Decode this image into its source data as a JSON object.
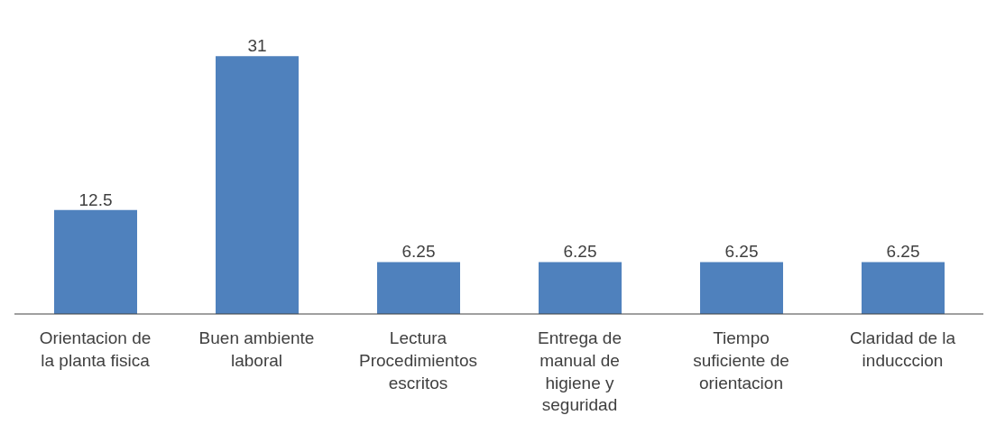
{
  "chart_data": {
    "type": "bar",
    "categories": [
      "Orientacion de la planta fisica",
      "Buen ambiente laboral",
      "Lectura Procedimientos escritos",
      "Entrega de manual de higiene y seguridad",
      "Tiempo suficiente de orientacion",
      "Claridad de la inducccion"
    ],
    "values": [
      12.5,
      31,
      6.25,
      6.25,
      6.25,
      6.25
    ],
    "color": "#4f81bd",
    "data_labels": true,
    "grid": false,
    "legend": false
  }
}
